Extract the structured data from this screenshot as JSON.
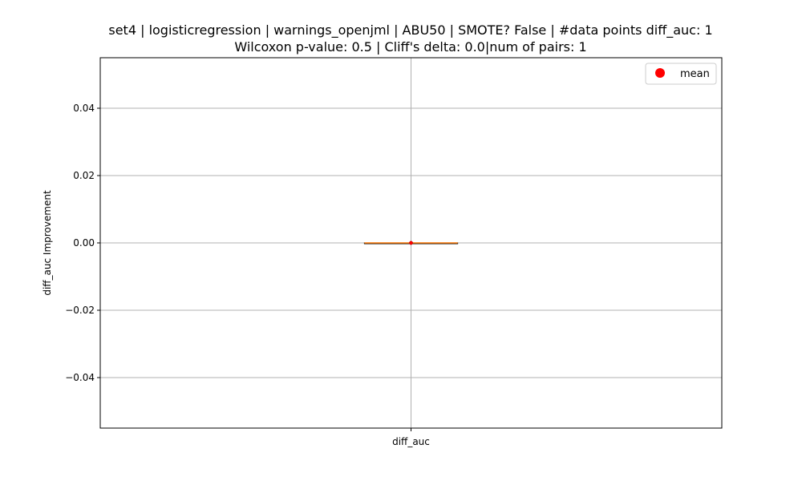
{
  "chart_data": {
    "type": "box",
    "title": "set4 | logisticregression | warnings_openjml | ABU50 | SMOTE? False | #data points diff_auc: 1",
    "subtitle": "Wilcoxon p-value: 0.5 | Cliff's delta: 0.0|num of pairs: 1",
    "xlabel": "",
    "ylabel": "diff_auc Improvement",
    "categories": [
      "diff_auc"
    ],
    "ylim": [
      -0.055,
      0.055
    ],
    "yticks": [
      -0.04,
      -0.02,
      0.0,
      0.02,
      0.04
    ],
    "ytick_labels": [
      "−0.04",
      "−0.02",
      "0.00",
      "0.02",
      "0.04"
    ],
    "grid": true,
    "legend": {
      "placement": "top-right",
      "entries": [
        {
          "label": "mean",
          "color": "#ff0000",
          "marker": "circle"
        }
      ]
    },
    "boxes": [
      {
        "category": "diff_auc",
        "min": 0.0,
        "q1": 0.0,
        "median": 0.0,
        "q3": 0.0,
        "max": 0.0,
        "mean": 0.0
      }
    ],
    "colors": {
      "median": "#ff7f0e",
      "mean": "#ff0000",
      "box": "#000000",
      "grid": "#b0b0b0"
    }
  }
}
